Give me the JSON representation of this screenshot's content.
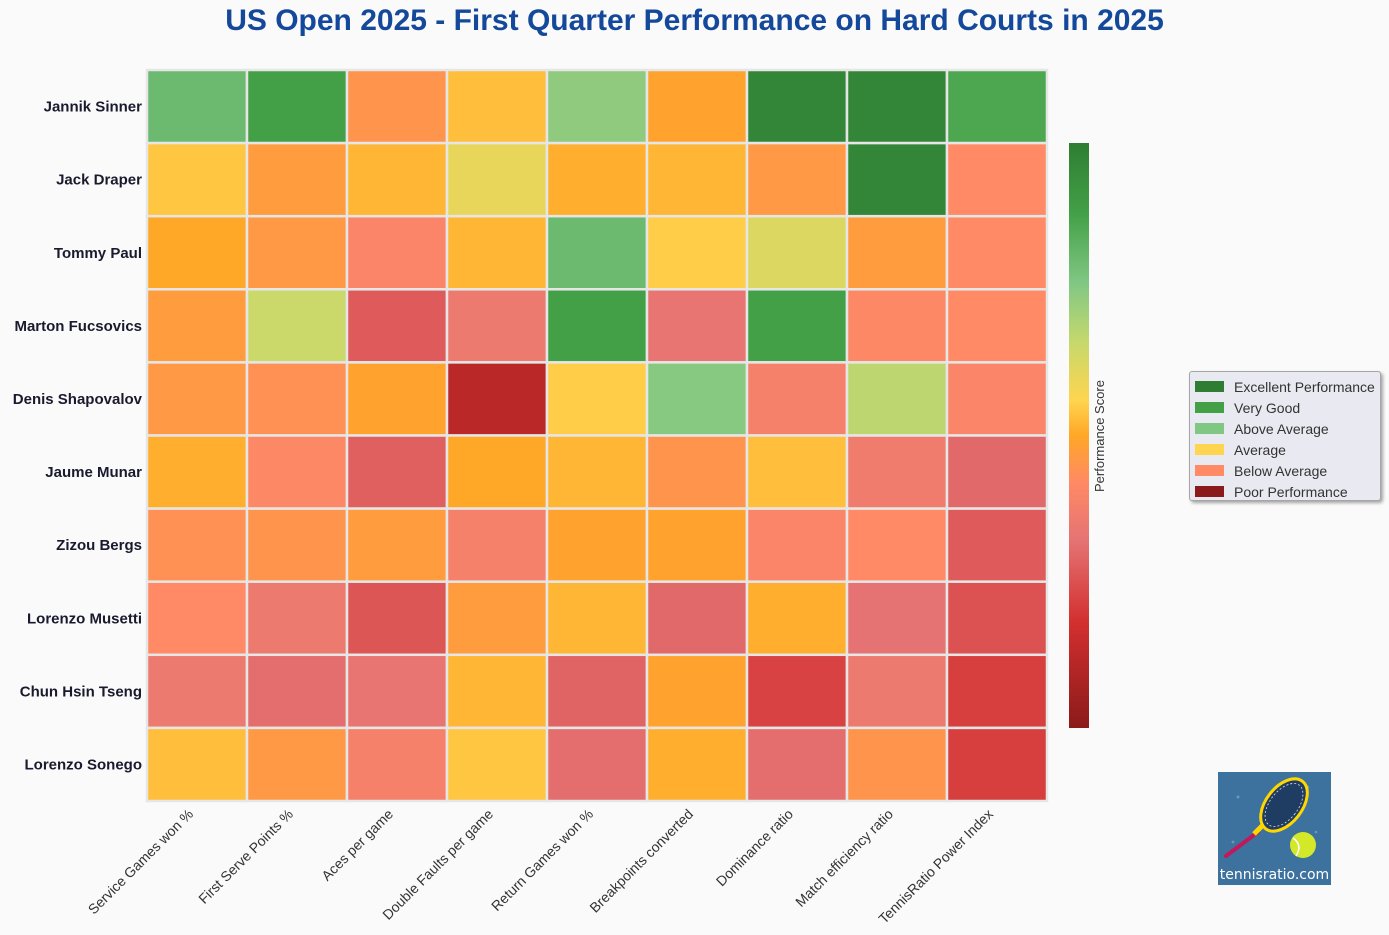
{
  "colors": {
    "excellent": "#2e7d32",
    "very_good": "#43a047",
    "above_average": "#81c784",
    "average": "#ffd54f",
    "below_average": "#ff8a65",
    "poor": "#8b1a1a",
    "title": "#14489a"
  },
  "legend": {
    "items": [
      {
        "label": "Excellent Performance",
        "color": "#2e7d32"
      },
      {
        "label": "Very Good",
        "color": "#43a047"
      },
      {
        "label": "Above Average",
        "color": "#81c784"
      },
      {
        "label": "Average",
        "color": "#ffd54f"
      },
      {
        "label": "Below Average",
        "color": "#ff8a65"
      },
      {
        "label": "Poor Performance",
        "color": "#8b1a1a"
      }
    ]
  },
  "logo": {
    "text": "tennisratio.com",
    "icon": "tennis-racket-and-ball-icon"
  },
  "chart_data": {
    "type": "heatmap",
    "title": "US Open 2025 - First Quarter Performance on Hard Courts in 2025",
    "colorbar_label": "Performance Score",
    "rows": [
      "Jannik Sinner",
      "Jack Draper",
      "Tommy Paul",
      "Marton Fucsovics",
      "Denis Shapovalov",
      "Jaume Munar",
      "Zizou Bergs",
      "Lorenzo Musetti",
      "Chun Hsin Tseng",
      "Lorenzo Sonego"
    ],
    "columns": [
      "Service Games won %",
      "First Serve Points %",
      "Aces per game",
      "Double Faults per game",
      "Return Games won %",
      "Breakpoints converted",
      "Dominance ratio",
      "Match efficiency ratio",
      "TennisRatio Power Index"
    ],
    "value_range": [
      0,
      1
    ],
    "values": [
      [
        0.8,
        0.88,
        0.45,
        0.53,
        0.74,
        0.49,
        0.97,
        0.97,
        0.86
      ],
      [
        0.54,
        0.47,
        0.52,
        0.6,
        0.51,
        0.52,
        0.46,
        0.97,
        0.42
      ],
      [
        0.5,
        0.46,
        0.4,
        0.52,
        0.8,
        0.55,
        0.62,
        0.47,
        0.42
      ],
      [
        0.47,
        0.65,
        0.27,
        0.35,
        0.88,
        0.33,
        0.88,
        0.41,
        0.42
      ],
      [
        0.46,
        0.44,
        0.49,
        0.12,
        0.55,
        0.75,
        0.38,
        0.67,
        0.4
      ],
      [
        0.51,
        0.41,
        0.28,
        0.5,
        0.52,
        0.45,
        0.53,
        0.36,
        0.3
      ],
      [
        0.44,
        0.45,
        0.47,
        0.38,
        0.49,
        0.49,
        0.4,
        0.42,
        0.27
      ],
      [
        0.42,
        0.35,
        0.26,
        0.47,
        0.52,
        0.3,
        0.51,
        0.32,
        0.25
      ],
      [
        0.35,
        0.31,
        0.33,
        0.52,
        0.29,
        0.49,
        0.22,
        0.35,
        0.21
      ],
      [
        0.53,
        0.46,
        0.38,
        0.54,
        0.31,
        0.51,
        0.31,
        0.45,
        0.21
      ]
    ]
  }
}
